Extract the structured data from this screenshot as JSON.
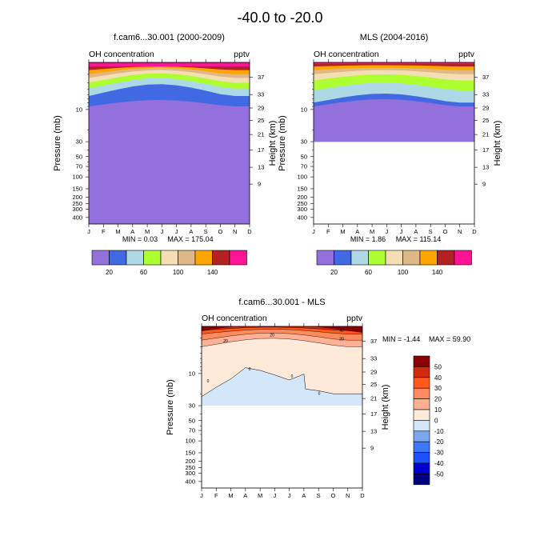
{
  "figure": {
    "title": "-40.0 to -20.0"
  },
  "chart_data": [
    {
      "type": "heatmap",
      "title": "f.cam6...30.001 (2000-2009)",
      "left_label": "OH concentration",
      "right_label": "pptv",
      "xlabel": "",
      "ylabel": "Pressure (mb)",
      "ylabel_right": "Height (km)",
      "x_ticks": [
        "J",
        "F",
        "M",
        "A",
        "M",
        "J",
        "J",
        "A",
        "S",
        "O",
        "N",
        "D"
      ],
      "y_ticks": [
        "10",
        "30",
        "50",
        "70",
        "100",
        "150",
        "200",
        "250",
        "300",
        "400"
      ],
      "y_ticks_right": [
        "37",
        "33",
        "29",
        "25",
        "21",
        "17",
        "13",
        "9"
      ],
      "ylim": [
        500,
        2
      ],
      "levels": [
        0,
        20,
        40,
        60,
        80,
        100,
        120,
        140,
        160
      ],
      "min_text": "MIN =   0.03",
      "max_text": "MAX = 175.04",
      "fill_levels_upper_edge_mb_Jan": [
        2.3,
        2.6,
        3.0,
        3.4,
        4.0,
        4.9,
        6.3,
        9.0
      ],
      "fill_levels_upper_edge_mb_Jun": [
        2.3,
        2.3,
        2.4,
        2.6,
        2.9,
        3.4,
        4.2,
        7.2
      ],
      "data_floor_mb": 500
    },
    {
      "type": "heatmap",
      "title": "MLS (2004-2016)",
      "left_label": "OH concentration",
      "right_label": "pptv",
      "xlabel": "",
      "ylabel": "Pressure (mb)",
      "ylabel_right": "Height (km)",
      "x_ticks": [
        "J",
        "F",
        "M",
        "A",
        "M",
        "J",
        "J",
        "A",
        "S",
        "O",
        "N",
        "D"
      ],
      "y_ticks": [
        "10",
        "30",
        "50",
        "70",
        "100",
        "150",
        "200",
        "250",
        "300",
        "400"
      ],
      "y_ticks_right": [
        "37",
        "33",
        "29",
        "25",
        "21",
        "17",
        "13",
        "9"
      ],
      "ylim": [
        500,
        2
      ],
      "levels": [
        0,
        20,
        40,
        60,
        80,
        100,
        120,
        140,
        160
      ],
      "min_text": "MIN =   1.86",
      "max_text": "MAX = 115.14",
      "fill_levels_upper_edge_mb_Jan": [
        2.1,
        2.3,
        2.6,
        3.0,
        3.7,
        5.2,
        7.9,
        9.0
      ],
      "fill_levels_upper_edge_mb_Jun": [
        2.1,
        2.2,
        2.4,
        2.6,
        3.0,
        4.0,
        5.8,
        7.0
      ],
      "data_floor_mb": 30
    },
    {
      "type": "heatmap",
      "title": "f.cam6...30.001 - MLS",
      "left_label": "OH concentration",
      "right_label": "pptv",
      "xlabel": "",
      "ylabel": "Pressure (mb)",
      "ylabel_right": "Height (km)",
      "x_ticks": [
        "J",
        "F",
        "M",
        "A",
        "M",
        "J",
        "J",
        "A",
        "S",
        "O",
        "N",
        "D"
      ],
      "y_ticks": [
        "10",
        "30",
        "50",
        "70",
        "100",
        "150",
        "200",
        "250",
        "300",
        "400"
      ],
      "y_ticks_right": [
        "37",
        "33",
        "29",
        "25",
        "21",
        "17",
        "13",
        "9"
      ],
      "ylim": [
        500,
        2
      ],
      "levels": [
        -60,
        -50,
        -40,
        -30,
        -20,
        -10,
        0,
        10,
        20,
        30,
        40,
        50,
        60
      ],
      "min_text": "MIN =  -1.44",
      "max_text": "MAX =  59.90",
      "contour_labels": [
        "0",
        "0",
        "0",
        "0",
        "20",
        "20",
        "20",
        "40"
      ],
      "data_floor_mb": 30
    }
  ],
  "colorbars": {
    "shared": {
      "colors": [
        "#9370DB",
        "#4169E1",
        "#ADD8E6",
        "#ADFF2F",
        "#F5DEB3",
        "#DEB887",
        "#FFA500",
        "#B22222",
        "#FF1493"
      ],
      "labels": [
        "20",
        "60",
        "100",
        "140"
      ]
    },
    "diff": {
      "colors": [
        "#000080",
        "#0000CD",
        "#1E50FF",
        "#3C78FF",
        "#7AA6F0",
        "#D3E6FA",
        "#FFE9D8",
        "#FFB095",
        "#FF8A5C",
        "#FF5A1A",
        "#D22A0A",
        "#8B0000"
      ],
      "labels": [
        "50",
        "40",
        "30",
        "20",
        "10",
        "0",
        "-10",
        "-20",
        "-30",
        "-40",
        "-50"
      ]
    }
  }
}
